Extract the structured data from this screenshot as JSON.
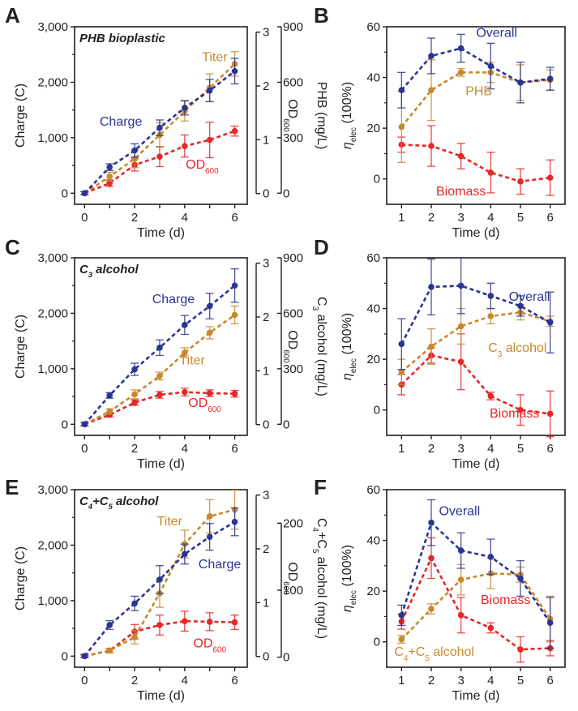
{
  "colors": {
    "charge": "#2a3591",
    "titer": "#c8892e",
    "od": "#e4282a",
    "overall": "#2a3591",
    "product": "#c8892e",
    "biomass": "#e4282a",
    "axis": "#231f20"
  },
  "charts": [
    {
      "id": "A",
      "panel": "A",
      "type": "line",
      "title": "PHB bioplastic",
      "xlabel": "Time (d)",
      "xlim": [
        -0.4,
        6.5
      ],
      "xticks": [
        "0",
        "2",
        "4",
        "6"
      ],
      "ylabel": "Charge (C)",
      "ylim": [
        -200,
        3000
      ],
      "yticks": [
        "0",
        "1,000",
        "2,000",
        "3,000"
      ],
      "y2label": {
        "pre": "OD",
        "sub": "600",
        "post": ""
      },
      "y2lim": [
        -0.2,
        3.1
      ],
      "y2ticks": [
        "0",
        "1",
        "2",
        "3"
      ],
      "y3label": {
        "pre": "PHB (mg/L)",
        "sub": "",
        "post": ""
      },
      "y3lim": [
        -60,
        900
      ],
      "y3ticks": [
        "0",
        "300 ",
        "600",
        "900"
      ],
      "series": [
        {
          "key": "charge",
          "label": "Charge",
          "x": [
            0,
            1,
            2,
            3,
            4,
            5,
            6
          ],
          "y": [
            0,
            470,
            770,
            1180,
            1540,
            1850,
            2200
          ],
          "err": [
            30,
            60,
            120,
            140,
            130,
            200,
            230
          ]
        },
        {
          "key": "titer",
          "label": "Titer",
          "x": [
            0,
            1,
            2,
            3,
            4,
            5,
            6
          ],
          "y": [
            0,
            300,
            620,
            1050,
            1480,
            1900,
            2330
          ],
          "err": [
            30,
            80,
            160,
            220,
            180,
            250,
            220
          ]
        },
        {
          "key": "od",
          "label": "OD",
          "sub": "600",
          "x": [
            0,
            1,
            2,
            3,
            4,
            5,
            6
          ],
          "y": [
            0,
            180,
            510,
            660,
            850,
            960,
            1120
          ],
          "err": [
            30,
            60,
            110,
            180,
            200,
            320,
            90
          ]
        }
      ]
    },
    {
      "id": "B",
      "panel": "B",
      "type": "line",
      "xlabel": "Time (d)",
      "xlim": [
        0.5,
        6.5
      ],
      "xticks": [
        "1",
        "2",
        "3",
        "4",
        "5",
        "6"
      ],
      "ylabel": {
        "pre": "η",
        "sub": "elec",
        "post": " (100%)"
      },
      "ylim": [
        -10,
        60
      ],
      "yticks": [
        "0",
        "20",
        "40",
        "60"
      ],
      "series": [
        {
          "key": "overall",
          "label": "Overall",
          "x": [
            1,
            2,
            3,
            4,
            5,
            6
          ],
          "y": [
            35,
            48.5,
            51.5,
            44.5,
            38,
            39.5
          ],
          "err": [
            7,
            7,
            5.5,
            9,
            8,
            4.5
          ]
        },
        {
          "key": "product",
          "label": "PHB",
          "x": [
            1,
            2,
            3,
            4,
            5,
            6
          ],
          "y": [
            20.5,
            35,
            42,
            42,
            38,
            39
          ],
          "err": [
            14,
            12,
            1.5,
            4,
            7,
            4
          ]
        },
        {
          "key": "biomass",
          "label": "Biomass",
          "x": [
            1,
            2,
            3,
            4,
            5,
            6
          ],
          "y": [
            13.5,
            13,
            9,
            2.5,
            -1,
            0.5
          ],
          "err": [
            3,
            8,
            5,
            8,
            5,
            7
          ]
        }
      ]
    },
    {
      "id": "C",
      "panel": "C",
      "type": "line",
      "title": {
        "pre": "C",
        "sub": "3",
        "post": " alcohol"
      },
      "xlabel": "Time (d)",
      "xlim": [
        -0.4,
        6.5
      ],
      "xticks": [
        "0",
        "2",
        "4",
        "6"
      ],
      "ylabel": "Charge (C)",
      "ylim": [
        -200,
        3000
      ],
      "yticks": [
        "0",
        "1,000",
        "2,000",
        "3,000"
      ],
      "y2label": {
        "pre": "OD",
        "sub": "600",
        "post": ""
      },
      "y2lim": [
        -0.2,
        3.1
      ],
      "y2ticks": [
        "0",
        "1",
        "2",
        "3"
      ],
      "y3label": {
        "pre": "C",
        "sub": "3",
        "post": " alcohol (mg/L)"
      },
      "y3lim": [
        -60,
        900
      ],
      "y3ticks": [
        "0",
        "300 ",
        "600",
        "900"
      ],
      "series": [
        {
          "key": "charge",
          "label": "Charge",
          "x": [
            0,
            1,
            2,
            3,
            4,
            5,
            6
          ],
          "y": [
            0,
            520,
            990,
            1380,
            1790,
            2130,
            2500
          ],
          "err": [
            30,
            50,
            110,
            140,
            170,
            230,
            300
          ]
        },
        {
          "key": "titer",
          "label": "Titer",
          "x": [
            0,
            1,
            2,
            3,
            4,
            5,
            6
          ],
          "y": [
            0,
            230,
            540,
            870,
            1290,
            1650,
            1970
          ],
          "err": [
            30,
            50,
            80,
            70,
            90,
            110,
            160
          ]
        },
        {
          "key": "od",
          "label": "OD",
          "sub": "600",
          "x": [
            0,
            1,
            2,
            3,
            4,
            5,
            6
          ],
          "y": [
            0,
            170,
            390,
            530,
            580,
            560,
            550
          ],
          "err": [
            30,
            40,
            50,
            60,
            70,
            60,
            60
          ]
        }
      ]
    },
    {
      "id": "D",
      "panel": "D",
      "type": "line",
      "xlabel": "Time (d)",
      "xlim": [
        0.5,
        6.5
      ],
      "xticks": [
        "1",
        "2",
        "3",
        "4",
        "5",
        "6"
      ],
      "ylabel": {
        "pre": "η",
        "sub": "elec",
        "post": " (100%)"
      },
      "ylim": [
        -10,
        60
      ],
      "yticks": [
        "0",
        "20",
        "40",
        "60"
      ],
      "series": [
        {
          "key": "overall",
          "label": "Overall",
          "x": [
            1,
            2,
            3,
            4,
            5,
            6
          ],
          "y": [
            26,
            48.5,
            49,
            45,
            41,
            34.5
          ],
          "err": [
            10,
            11,
            11,
            5,
            4,
            12
          ]
        },
        {
          "key": "product",
          "label": "C₃ alcohol",
          "labelParts": {
            "pre": "C",
            "sub": "3",
            "post": " alcohol"
          },
          "x": [
            1,
            2,
            3,
            4,
            5,
            6
          ],
          "y": [
            15,
            25,
            33,
            37,
            38.5,
            35
          ],
          "err": [
            5,
            7,
            7,
            3,
            3,
            2
          ]
        },
        {
          "key": "biomass",
          "label": "Biomass",
          "x": [
            1,
            2,
            3,
            4,
            5,
            6
          ],
          "y": [
            10,
            21.5,
            19,
            5.5,
            0,
            -1.5
          ],
          "err": [
            4,
            3,
            11,
            1.5,
            6,
            9
          ]
        }
      ]
    },
    {
      "id": "E",
      "panel": "E",
      "type": "line",
      "title": {
        "pre": "C",
        "sub": "4",
        "mid": "+C",
        "sub2": "5",
        "post": " alcohol"
      },
      "xlabel": "Time (d)",
      "xlim": [
        -0.4,
        6.5
      ],
      "xticks": [
        "0",
        "2",
        "4",
        "6"
      ],
      "ylabel": "Charge (C)",
      "ylim": [
        -200,
        3000
      ],
      "yticks": [
        "0",
        "1,000",
        "2,000",
        "3,000"
      ],
      "y2label": {
        "pre": "OD",
        "sub": "600",
        "post": ""
      },
      "y2lim": [
        -0.2,
        3.1
      ],
      "y2ticks": [
        "0",
        "1",
        "2",
        "3"
      ],
      "y3label": {
        "pre": "C",
        "sub": "4",
        "mid": "+C",
        "sub2": "5",
        "post": " alcohol (mg/L)"
      },
      "y3lim": [
        -15,
        250
      ],
      "y3ticks": [
        "0",
        "100",
        "200"
      ],
      "series": [
        {
          "key": "charge",
          "label": "Charge",
          "x": [
            0,
            1,
            2,
            3,
            4,
            5,
            6
          ],
          "y": [
            0,
            560,
            950,
            1380,
            1840,
            2150,
            2420
          ],
          "err": [
            30,
            80,
            130,
            250,
            180,
            240,
            250
          ]
        },
        {
          "key": "titer",
          "label": "Titer",
          "x": [
            0,
            1,
            2,
            3,
            4,
            5,
            6
          ],
          "y": [
            0,
            100,
            340,
            1130,
            2020,
            2520,
            2640
          ],
          "err": [
            20,
            40,
            120,
            250,
            250,
            300,
            350
          ]
        },
        {
          "key": "od",
          "label": "OD",
          "sub": "600",
          "x": [
            0,
            1,
            2,
            3,
            4,
            5,
            6
          ],
          "y": [
            0,
            100,
            440,
            560,
            630,
            620,
            610
          ],
          "err": [
            20,
            40,
            130,
            180,
            180,
            160,
            130
          ]
        }
      ]
    },
    {
      "id": "F",
      "panel": "F",
      "type": "line",
      "xlabel": "Time (d)",
      "xlim": [
        0.5,
        6.5
      ],
      "xticks": [
        "1",
        "2",
        "3",
        "4",
        "5",
        "6"
      ],
      "ylabel": {
        "pre": "η",
        "sub": "elec",
        "post": " (100%)"
      },
      "ylim": [
        -10,
        60
      ],
      "yticks": [
        "0",
        "20",
        "40",
        "60"
      ],
      "series": [
        {
          "key": "overall",
          "label": "Overall",
          "x": [
            1,
            2,
            3,
            4,
            5,
            6
          ],
          "y": [
            10.5,
            47,
            36,
            33.5,
            25,
            7.5
          ],
          "err": [
            4,
            9,
            7,
            7,
            7,
            10
          ]
        },
        {
          "key": "product",
          "label": "C₄+C₅ alcohol",
          "labelParts": {
            "pre": "C",
            "sub": "4",
            "mid": "+C",
            "sub2": "5",
            "post": " alcohol"
          },
          "x": [
            1,
            2,
            3,
            4,
            5,
            6
          ],
          "y": [
            1,
            13,
            24.5,
            27,
            26.5,
            9
          ],
          "err": [
            1.5,
            2,
            6,
            6,
            3,
            9
          ]
        },
        {
          "key": "biomass",
          "label": "Biomass",
          "x": [
            1,
            2,
            3,
            4,
            5,
            6
          ],
          "y": [
            8,
            33,
            10.5,
            5.5,
            -3,
            -2.5
          ],
          "err": [
            3,
            8,
            7,
            2,
            5,
            3
          ]
        }
      ]
    }
  ]
}
